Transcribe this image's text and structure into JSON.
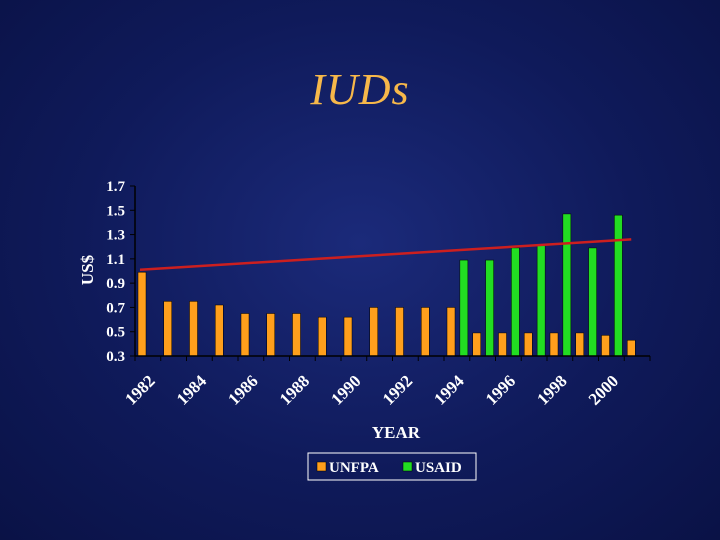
{
  "slide": {
    "title": "IUDs"
  },
  "chart_data": {
    "type": "bar",
    "title": "IUDs",
    "xlabel": "YEAR",
    "ylabel": "US$",
    "ylim": [
      0.3,
      1.7
    ],
    "yticks": [
      "1.7",
      "1.5",
      "1.3",
      "1.1",
      "0.9",
      "0.7",
      "0.5",
      "0.3"
    ],
    "categories": [
      "1982",
      "1983",
      "1984",
      "1985",
      "1986",
      "1987",
      "1988",
      "1989",
      "1990",
      "1991",
      "1992",
      "1993",
      "1994",
      "1995",
      "1996",
      "1997",
      "1998",
      "1999",
      "2000",
      "2001"
    ],
    "xtick_labels": [
      "1982",
      "1984",
      "1986",
      "1988",
      "1990",
      "1992",
      "1994",
      "1996",
      "1998",
      "2000"
    ],
    "series": [
      {
        "name": "UNFPA",
        "color": "#ff9f1c",
        "values": [
          0.99,
          0.75,
          0.75,
          0.72,
          0.65,
          0.65,
          0.65,
          0.62,
          0.62,
          0.7,
          0.7,
          0.7,
          0.7,
          0.49,
          0.49,
          0.49,
          0.49,
          0.49,
          0.47,
          0.43
        ]
      },
      {
        "name": "USAID",
        "color": "#22dd22",
        "values": [
          null,
          null,
          null,
          null,
          null,
          null,
          null,
          null,
          null,
          null,
          null,
          null,
          1.09,
          1.09,
          1.19,
          1.21,
          1.47,
          1.19,
          1.46,
          null
        ]
      }
    ],
    "trendline": {
      "color": "#cc1f1f",
      "start": 1.01,
      "end": 1.26
    },
    "legend": {
      "position": "bottom"
    },
    "grid": false
  }
}
